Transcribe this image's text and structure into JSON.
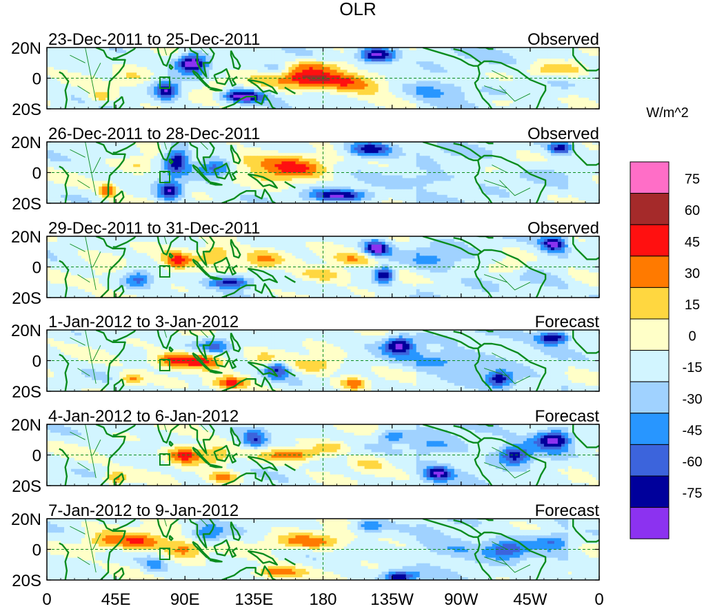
{
  "title": "OLR",
  "units": "W/m^2",
  "y_tick_labels": [
    "20N",
    "0",
    "20S"
  ],
  "x_tick_labels": [
    "0",
    "45E",
    "90E",
    "135E",
    "180",
    "135W",
    "90W",
    "45W",
    "0"
  ],
  "panels": [
    {
      "period": "23-Dec-2011 to 25-Dec-2011",
      "type": "Observed"
    },
    {
      "period": "26-Dec-2011 to 28-Dec-2011",
      "type": "Observed"
    },
    {
      "period": "29-Dec-2011 to 31-Dec-2011",
      "type": "Observed"
    },
    {
      "period": "1-Jan-2012 to 3-Jan-2012",
      "type": "Forecast"
    },
    {
      "period": "4-Jan-2012 to 6-Jan-2012",
      "type": "Forecast"
    },
    {
      "period": "7-Jan-2012 to 9-Jan-2012",
      "type": "Forecast"
    }
  ],
  "colorbar": {
    "labels": [
      "75",
      "60",
      "45",
      "30",
      "15",
      "0",
      "-15",
      "-30",
      "-45",
      "-60",
      "-75"
    ],
    "colors": [
      "#ff6ec7",
      "#a52a2a",
      "#ff1010",
      "#ff7a00",
      "#ffd740",
      "#ffffc8",
      "#d2f5ff",
      "#a0d2ff",
      "#2896ff",
      "#3c64dc",
      "#00009b",
      "#8c32f0"
    ]
  },
  "colors": {
    "coast": "#0a8c1e",
    "frame": "#000000"
  }
}
